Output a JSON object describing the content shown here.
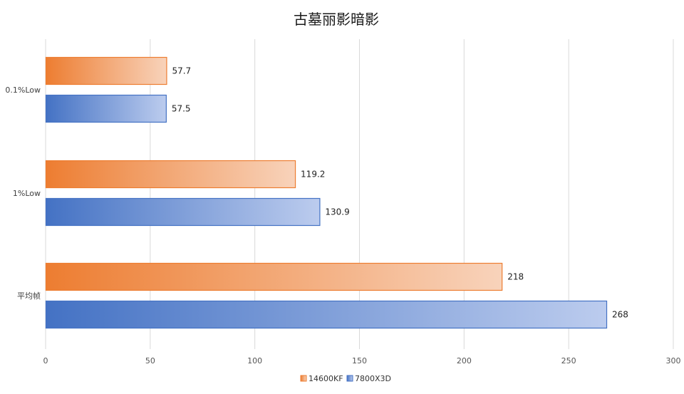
{
  "chart_data": {
    "type": "bar",
    "orientation": "horizontal",
    "title": "古墓丽影暗影",
    "categories": [
      "0.1%Low",
      "1%Low",
      "平均帧"
    ],
    "series": [
      {
        "name": "14600KF",
        "values": [
          57.7,
          119.2,
          218
        ],
        "labels": [
          "57.7",
          "119.2",
          "218"
        ],
        "color": "#ED7D31"
      },
      {
        "name": "7800X3D",
        "values": [
          57.5,
          130.9,
          268
        ],
        "labels": [
          "57.5",
          "130.9",
          "268"
        ],
        "color": "#4472C4"
      }
    ],
    "xlim": [
      0,
      300
    ],
    "xticks": [
      0,
      50,
      100,
      150,
      200,
      250,
      300
    ],
    "xtick_labels": [
      "0",
      "50",
      "100",
      "150",
      "200",
      "250",
      "300"
    ],
    "grid": true,
    "legend_position": "bottom"
  }
}
